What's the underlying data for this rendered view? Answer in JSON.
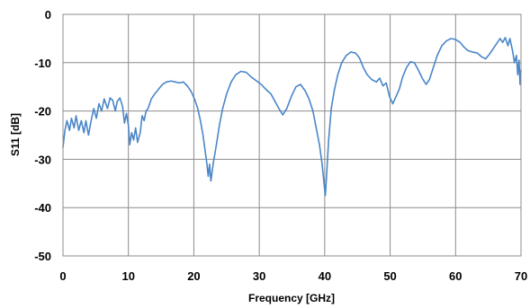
{
  "chart_data": {
    "type": "line",
    "title": "",
    "xlabel": "Frequency [GHz]",
    "ylabel": "S11 [dB]",
    "xlim": [
      0,
      70
    ],
    "ylim": [
      -50,
      0
    ],
    "x_ticks": [
      "0",
      "10",
      "20",
      "30",
      "40",
      "50",
      "60",
      "70"
    ],
    "y_ticks": [
      "0",
      "-10",
      "-20",
      "-30",
      "-40",
      "-50"
    ],
    "grid": true,
    "legend": "none",
    "series": [
      {
        "color": "#4a86c8",
        "points": [
          [
            0.0,
            -27.5
          ],
          [
            0.3,
            -24.0
          ],
          [
            0.6,
            -22.0
          ],
          [
            1.0,
            -24.0
          ],
          [
            1.3,
            -21.5
          ],
          [
            1.7,
            -23.5
          ],
          [
            2.0,
            -21.0
          ],
          [
            2.4,
            -24.0
          ],
          [
            2.8,
            -22.0
          ],
          [
            3.2,
            -24.5
          ],
          [
            3.5,
            -22.0
          ],
          [
            3.9,
            -25.0
          ],
          [
            4.3,
            -22.0
          ],
          [
            4.7,
            -19.5
          ],
          [
            5.1,
            -21.5
          ],
          [
            5.5,
            -18.5
          ],
          [
            5.9,
            -20.0
          ],
          [
            6.3,
            -17.5
          ],
          [
            6.8,
            -19.5
          ],
          [
            7.2,
            -17.3
          ],
          [
            7.6,
            -17.8
          ],
          [
            8.0,
            -20.0
          ],
          [
            8.3,
            -18.0
          ],
          [
            8.7,
            -17.3
          ],
          [
            9.1,
            -19.0
          ],
          [
            9.4,
            -22.5
          ],
          [
            9.7,
            -20.5
          ],
          [
            10.0,
            -23.0
          ],
          [
            10.2,
            -27.0
          ],
          [
            10.5,
            -24.5
          ],
          [
            10.8,
            -26.0
          ],
          [
            11.1,
            -23.5
          ],
          [
            11.4,
            -26.5
          ],
          [
            11.8,
            -24.5
          ],
          [
            12.1,
            -21.0
          ],
          [
            12.4,
            -22.0
          ],
          [
            12.7,
            -20.0
          ],
          [
            13.0,
            -19.5
          ],
          [
            13.5,
            -17.5
          ],
          [
            14.0,
            -16.5
          ],
          [
            14.6,
            -15.5
          ],
          [
            15.2,
            -14.5
          ],
          [
            15.8,
            -14.0
          ],
          [
            16.5,
            -13.8
          ],
          [
            17.2,
            -14.0
          ],
          [
            17.8,
            -14.2
          ],
          [
            18.4,
            -14.0
          ],
          [
            19.0,
            -14.8
          ],
          [
            19.6,
            -16.0
          ],
          [
            20.1,
            -17.5
          ],
          [
            20.6,
            -19.5
          ],
          [
            21.0,
            -22.0
          ],
          [
            21.4,
            -25.0
          ],
          [
            21.7,
            -28.0
          ],
          [
            22.0,
            -31.0
          ],
          [
            22.2,
            -33.5
          ],
          [
            22.4,
            -31.0
          ],
          [
            22.6,
            -34.5
          ],
          [
            22.8,
            -32.5
          ],
          [
            23.0,
            -30.5
          ],
          [
            23.2,
            -29.0
          ],
          [
            23.5,
            -26.5
          ],
          [
            23.9,
            -23.0
          ],
          [
            24.4,
            -19.5
          ],
          [
            25.0,
            -16.5
          ],
          [
            25.7,
            -14.0
          ],
          [
            26.4,
            -12.5
          ],
          [
            27.2,
            -11.8
          ],
          [
            28.0,
            -12.0
          ],
          [
            28.8,
            -13.0
          ],
          [
            29.6,
            -13.8
          ],
          [
            30.3,
            -14.5
          ],
          [
            31.0,
            -15.5
          ],
          [
            31.8,
            -16.5
          ],
          [
            32.4,
            -18.0
          ],
          [
            33.0,
            -19.5
          ],
          [
            33.6,
            -20.8
          ],
          [
            34.2,
            -19.5
          ],
          [
            34.9,
            -17.0
          ],
          [
            35.6,
            -15.0
          ],
          [
            36.3,
            -14.5
          ],
          [
            37.0,
            -15.8
          ],
          [
            37.6,
            -17.5
          ],
          [
            38.2,
            -20.0
          ],
          [
            38.7,
            -23.5
          ],
          [
            39.2,
            -27.0
          ],
          [
            39.6,
            -31.0
          ],
          [
            39.9,
            -35.0
          ],
          [
            40.1,
            -37.5
          ],
          [
            40.3,
            -33.0
          ],
          [
            40.6,
            -26.0
          ],
          [
            41.0,
            -19.5
          ],
          [
            41.5,
            -15.5
          ],
          [
            42.0,
            -12.5
          ],
          [
            42.6,
            -10.0
          ],
          [
            43.3,
            -8.5
          ],
          [
            44.0,
            -7.8
          ],
          [
            44.7,
            -8.0
          ],
          [
            45.3,
            -9.0
          ],
          [
            45.9,
            -11.0
          ],
          [
            46.5,
            -12.5
          ],
          [
            47.2,
            -13.5
          ],
          [
            47.9,
            -14.0
          ],
          [
            48.4,
            -13.2
          ],
          [
            48.9,
            -14.8
          ],
          [
            49.4,
            -14.2
          ],
          [
            49.9,
            -17.0
          ],
          [
            50.4,
            -18.5
          ],
          [
            50.9,
            -17.0
          ],
          [
            51.4,
            -15.5
          ],
          [
            51.9,
            -13.0
          ],
          [
            52.5,
            -11.0
          ],
          [
            53.1,
            -9.8
          ],
          [
            53.7,
            -10.0
          ],
          [
            54.3,
            -11.5
          ],
          [
            54.9,
            -13.2
          ],
          [
            55.5,
            -14.5
          ],
          [
            56.0,
            -13.5
          ],
          [
            56.6,
            -11.0
          ],
          [
            57.2,
            -8.5
          ],
          [
            57.9,
            -6.5
          ],
          [
            58.6,
            -5.5
          ],
          [
            59.3,
            -5.0
          ],
          [
            60.0,
            -5.2
          ],
          [
            60.7,
            -5.8
          ],
          [
            61.3,
            -6.8
          ],
          [
            61.9,
            -7.5
          ],
          [
            62.6,
            -7.8
          ],
          [
            63.3,
            -8.0
          ],
          [
            64.0,
            -8.8
          ],
          [
            64.6,
            -9.2
          ],
          [
            65.2,
            -8.2
          ],
          [
            65.8,
            -7.0
          ],
          [
            66.3,
            -6.0
          ],
          [
            66.8,
            -5.0
          ],
          [
            67.2,
            -5.8
          ],
          [
            67.6,
            -4.8
          ],
          [
            68.0,
            -6.5
          ],
          [
            68.3,
            -5.0
          ],
          [
            68.7,
            -7.5
          ],
          [
            69.0,
            -10.0
          ],
          [
            69.3,
            -8.5
          ],
          [
            69.5,
            -12.5
          ],
          [
            69.7,
            -9.5
          ],
          [
            69.85,
            -14.5
          ],
          [
            70.0,
            -11.5
          ]
        ]
      }
    ]
  }
}
